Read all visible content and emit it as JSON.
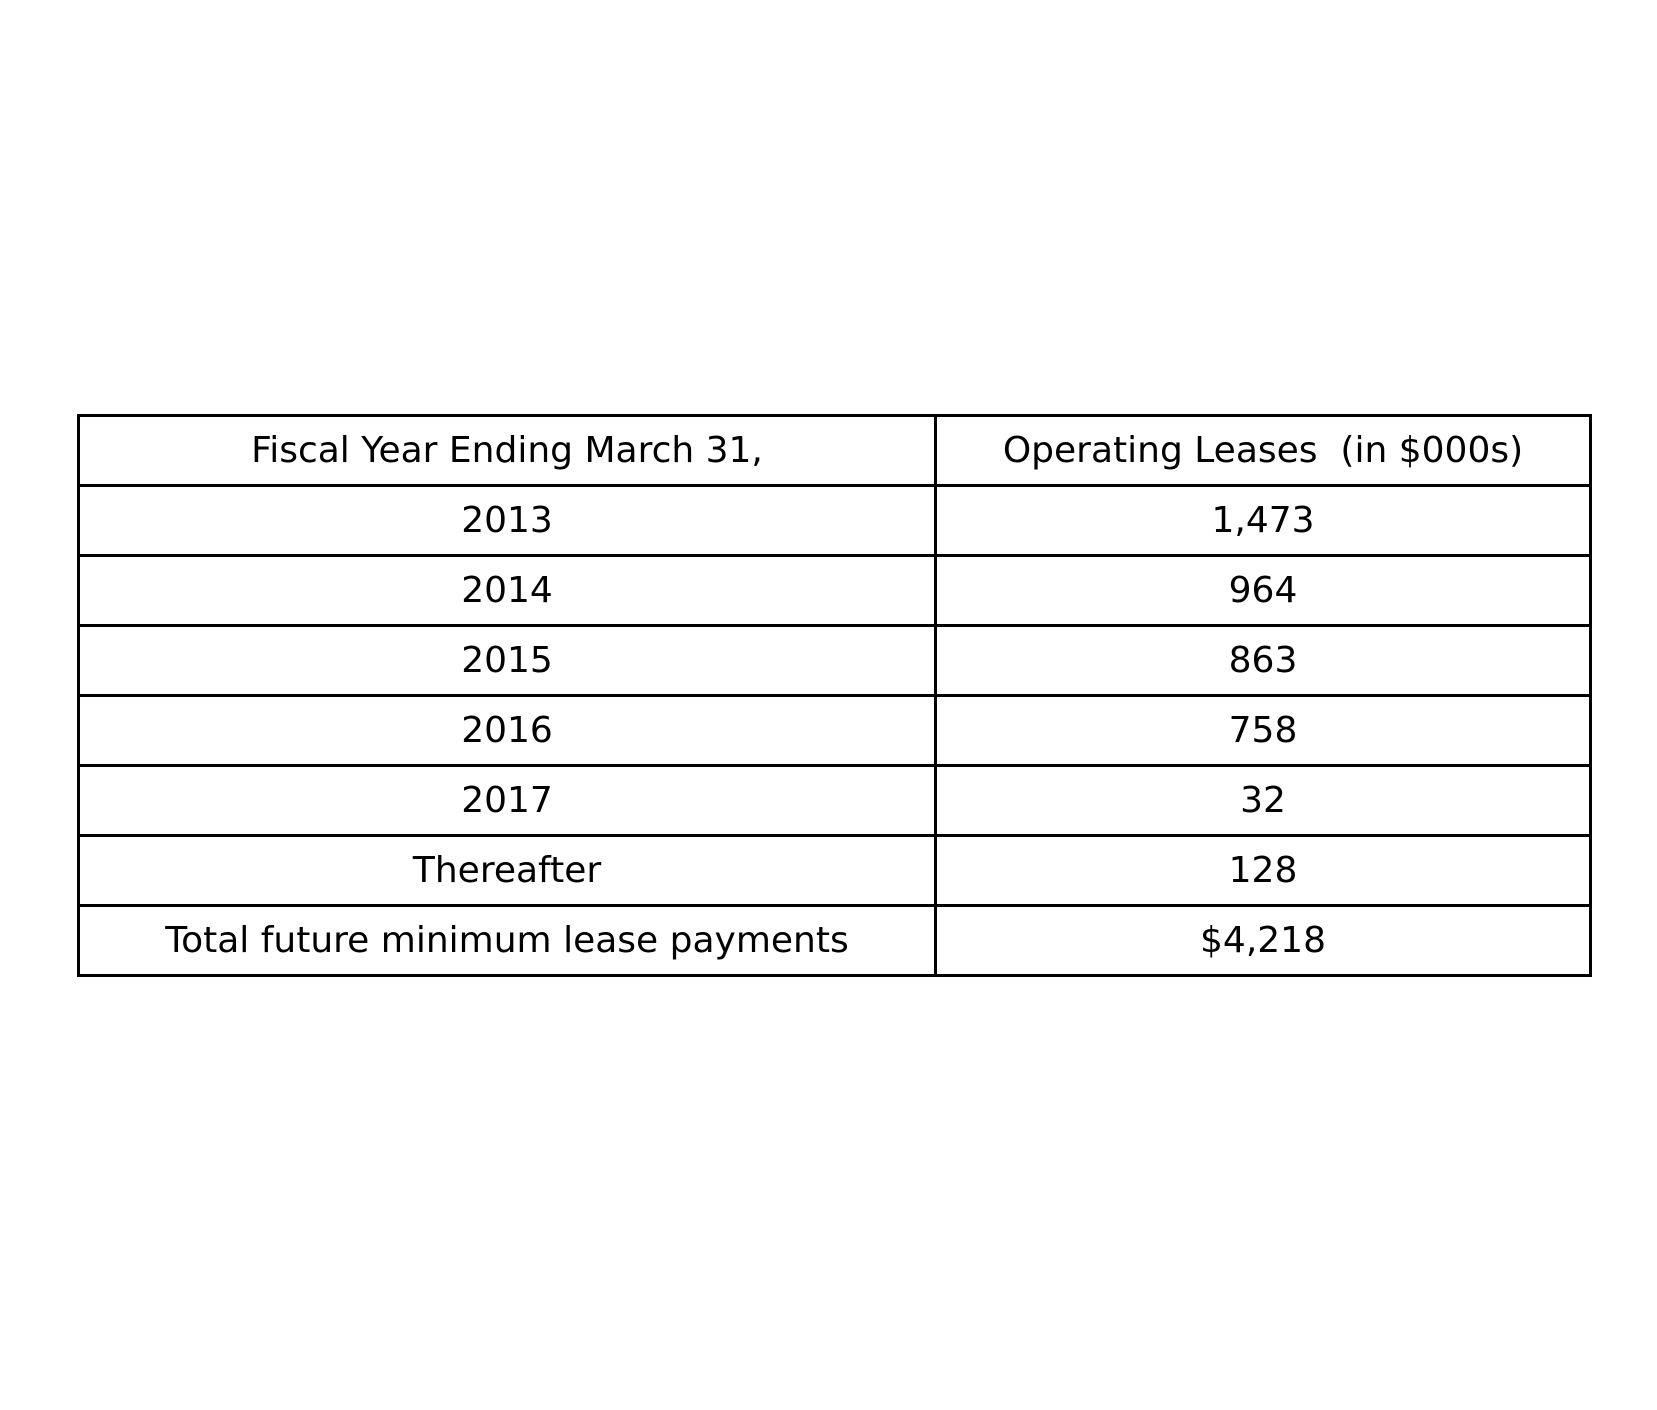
{
  "table": {
    "headers": [
      "Fiscal Year Ending March 31,",
      "Operating Leases  (in $000s)"
    ],
    "rows": [
      [
        "2013",
        "1,473"
      ],
      [
        "2014",
        "964"
      ],
      [
        "2015",
        "863"
      ],
      [
        "2016",
        "758"
      ],
      [
        "2017",
        "32"
      ],
      [
        "Thereafter",
        "128"
      ],
      [
        "Total future minimum lease payments",
        "$4,218"
      ]
    ]
  },
  "colors": {
    "border": "#000000",
    "text": "#000000",
    "background": "#ffffff"
  }
}
